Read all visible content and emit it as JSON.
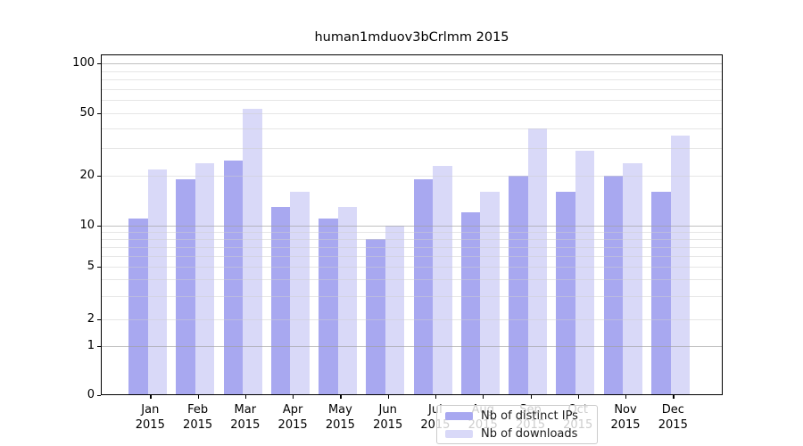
{
  "title": "human1mduov3bCrlmm 2015",
  "colors": {
    "ips": "#a8a8f0",
    "downloads": "#d9d9f8",
    "major_grid": "#a0a0a0",
    "minor_grid": "#d0d0d0",
    "spine": "#000000",
    "text": "#000000"
  },
  "legend": {
    "items": [
      {
        "label": "Nb of distinct IPs",
        "color_key": "ips"
      },
      {
        "label": "Nb of downloads",
        "color_key": "downloads"
      }
    ]
  },
  "x_axis": {
    "months": [
      "Jan",
      "Feb",
      "Mar",
      "Apr",
      "May",
      "Jun",
      "Jul",
      "Aug",
      "Sep",
      "Oct",
      "Nov",
      "Dec"
    ],
    "year_label": "2015"
  },
  "y_axis": {
    "tick_values": [
      0,
      1,
      2,
      5,
      10,
      20,
      50,
      100
    ],
    "tick_labels": [
      "0",
      "1",
      "2",
      "5",
      "10",
      "20",
      "50",
      "100"
    ],
    "major_grid_values": [
      1,
      10,
      100
    ],
    "minor_grid_values": [
      2,
      3,
      4,
      5,
      6,
      7,
      8,
      9,
      20,
      30,
      40,
      50,
      60,
      70,
      80,
      90
    ]
  },
  "chart_data": {
    "type": "bar",
    "title": "human1mduov3bCrlmm 2015",
    "categories": [
      "Jan 2015",
      "Feb 2015",
      "Mar 2015",
      "Apr 2015",
      "May 2015",
      "Jun 2015",
      "Jul 2015",
      "Aug 2015",
      "Sep 2015",
      "Oct 2015",
      "Nov 2015",
      "Dec 2015"
    ],
    "series": [
      {
        "name": "Nb of distinct IPs",
        "values": [
          11,
          19,
          25,
          13,
          11,
          8,
          19,
          12,
          20,
          16,
          20,
          16
        ]
      },
      {
        "name": "Nb of downloads",
        "values": [
          22,
          24,
          53,
          16,
          13,
          10,
          23,
          16,
          40,
          29,
          24,
          36
        ]
      }
    ],
    "xlabel": "",
    "ylabel": "",
    "ylim": [
      0,
      110
    ],
    "yscale": "log-like with linear zero (ticks 0,1,2,5,10,20,50,100)",
    "grid": "horizontal major and minor gridlines",
    "legend_position": "inside bottom-center"
  }
}
